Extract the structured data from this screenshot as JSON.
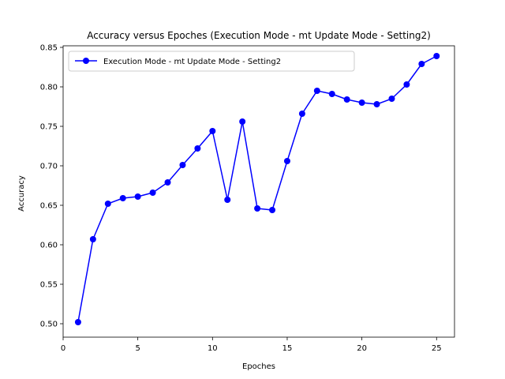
{
  "chart_data": {
    "type": "line",
    "title": "Accuracy versus Epoches (Execution Mode - mt Update Mode - Setting2)",
    "xlabel": "Epoches",
    "ylabel": "Accuracy",
    "xlim": [
      0,
      26.2
    ],
    "ylim": [
      0.483,
      0.852
    ],
    "xticks": [
      0,
      5,
      10,
      15,
      20,
      25
    ],
    "xtick_labels": [
      "0",
      "5",
      "10",
      "15",
      "20",
      "25"
    ],
    "yticks": [
      0.5,
      0.55,
      0.6,
      0.65,
      0.7,
      0.75,
      0.8,
      0.85
    ],
    "ytick_labels": [
      "0.50",
      "0.55",
      "0.60",
      "0.65",
      "0.70",
      "0.75",
      "0.80",
      "0.85"
    ],
    "grid": false,
    "legend_position": "upper-left",
    "series": [
      {
        "name": "Execution Mode - mt Update Mode - Setting2",
        "color": "#0000ff",
        "marker": "circle",
        "x": [
          1,
          2,
          3,
          4,
          5,
          6,
          7,
          8,
          9,
          10,
          11,
          12,
          13,
          14,
          15,
          16,
          17,
          18,
          19,
          20,
          21,
          22,
          23,
          24,
          25
        ],
        "y": [
          0.502,
          0.607,
          0.652,
          0.659,
          0.661,
          0.666,
          0.679,
          0.701,
          0.722,
          0.744,
          0.657,
          0.756,
          0.646,
          0.644,
          0.706,
          0.766,
          0.795,
          0.791,
          0.784,
          0.78,
          0.778,
          0.785,
          0.803,
          0.829,
          0.839
        ]
      }
    ]
  }
}
